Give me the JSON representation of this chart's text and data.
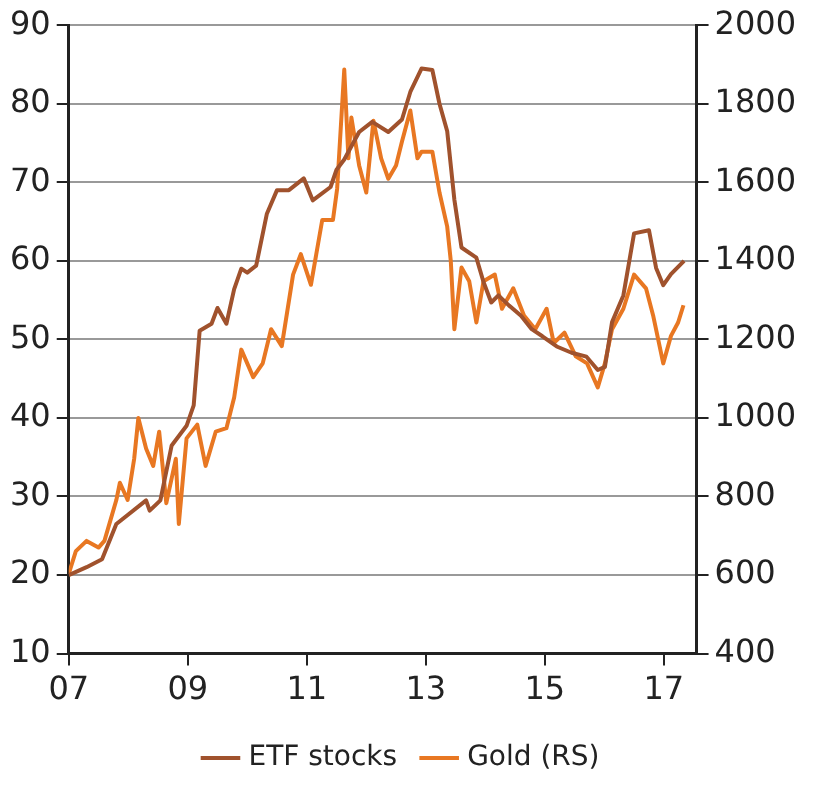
{
  "chart_data": {
    "type": "line",
    "x": [
      2007,
      2007.3,
      2007.56,
      2007.8,
      2008.3,
      2008.36,
      2008.54,
      2008.73,
      2008.98,
      2009.1,
      2009.2,
      2009.4,
      2009.5,
      2009.65,
      2009.78,
      2009.9,
      2010,
      2010.15,
      2010.33,
      2010.5,
      2010.7,
      2010.95,
      2011.1,
      2011.4,
      2011.5,
      2011.63,
      2011.88,
      2012.1,
      2012.37,
      2012.6,
      2012.74,
      2012.93,
      2013.11,
      2013.23,
      2013.36,
      2013.48,
      2013.6,
      2013.85,
      2013.97,
      2014.1,
      2014.22,
      2014.4,
      2014.6,
      2014.78,
      2014.96,
      2015.2,
      2015.45,
      2015.7,
      2015.89,
      2016.01,
      2016.13,
      2016.32,
      2016.5,
      2016.75,
      2016.87,
      2016.99,
      2017.12,
      2017.34
    ],
    "series": [
      {
        "name": "ETF stocks",
        "color": "#a0522d",
        "values": [
          20,
          21,
          22,
          26.5,
          29.5,
          28.2,
          29.5,
          36.5,
          39,
          41.6,
          51.1,
          52,
          54,
          52,
          56.4,
          59,
          58.5,
          59.4,
          66,
          69,
          69,
          70.5,
          67.7,
          69.4,
          71.6,
          72.9,
          76.4,
          77.7,
          76.4,
          78,
          81.5,
          84.5,
          84.3,
          80,
          76.5,
          67.8,
          61.7,
          60.4,
          57.3,
          54.7,
          55.6,
          54.3,
          53,
          51.3,
          50.4,
          49.1,
          48.3,
          47.8,
          46.1,
          46.5,
          52.2,
          55.6,
          63.5,
          63.9,
          59.1,
          56.9,
          58.3,
          60
        ]
      },
      {
        "name": "Gold (RS)",
        "color": "#e87722",
        "axis": "y2",
        "x": [
          2007,
          2007.12,
          2007.3,
          2007.5,
          2007.6,
          2007.8,
          2007.86,
          2007.99,
          2008.1,
          2008.17,
          2008.3,
          2008.42,
          2008.52,
          2008.64,
          2008.8,
          2008.85,
          2008.98,
          2009.16,
          2009.3,
          2009.47,
          2009.65,
          2009.78,
          2009.9,
          2010.1,
          2010.26,
          2010.4,
          2010.58,
          2010.77,
          2010.9,
          2011.07,
          2011.26,
          2011.44,
          2011.51,
          2011.63,
          2011.7,
          2011.75,
          2011.88,
          2012,
          2012.12,
          2012.25,
          2012.37,
          2012.5,
          2012.6,
          2012.74,
          2012.86,
          2012.93,
          2013.11,
          2013.23,
          2013.36,
          2013.42,
          2013.48,
          2013.6,
          2013.73,
          2013.85,
          2013.97,
          2014.16,
          2014.28,
          2014.47,
          2014.65,
          2014.84,
          2015.03,
          2015.15,
          2015.33,
          2015.52,
          2015.71,
          2015.89,
          2016.01,
          2016.13,
          2016.32,
          2016.5,
          2016.7,
          2016.82,
          2016.99,
          2017.12,
          2017.24,
          2017.33
        ],
        "values": [
          603,
          661,
          687,
          670,
          687,
          791,
          835,
          791,
          896,
          1000,
          922,
          878,
          965,
          783,
          896,
          730,
          948,
          983,
          878,
          965,
          974,
          1052,
          1174,
          1104,
          1139,
          1226,
          1183,
          1365,
          1417,
          1339,
          1504,
          1504,
          1583,
          1887,
          1661,
          1765,
          1643,
          1574,
          1757,
          1661,
          1609,
          1643,
          1704,
          1783,
          1661,
          1678,
          1678,
          1574,
          1487,
          1400,
          1226,
          1383,
          1348,
          1243,
          1348,
          1365,
          1278,
          1330,
          1261,
          1226,
          1278,
          1191,
          1217,
          1157,
          1139,
          1078,
          1139,
          1226,
          1278,
          1365,
          1330,
          1261,
          1139,
          1209,
          1243,
          1287
        ]
      }
    ],
    "xlim": [
      2007,
      2017.55
    ],
    "xticks": [
      {
        "value": 2007,
        "label": "07"
      },
      {
        "value": 2009,
        "label": "09"
      },
      {
        "value": 2011,
        "label": "11"
      },
      {
        "value": 2013,
        "label": "13"
      },
      {
        "value": 2015,
        "label": "15"
      },
      {
        "value": 2017,
        "label": "17"
      }
    ],
    "ylim": [
      10,
      90
    ],
    "yticks": [
      10,
      20,
      30,
      40,
      50,
      60,
      70,
      80,
      90
    ],
    "y2lim": [
      400,
      2000
    ],
    "y2ticks": [
      400,
      600,
      800,
      1000,
      1200,
      1400,
      1600,
      1800,
      2000
    ],
    "grid": "y",
    "legend": "bottom",
    "marker": "none",
    "line_style": "solid"
  }
}
